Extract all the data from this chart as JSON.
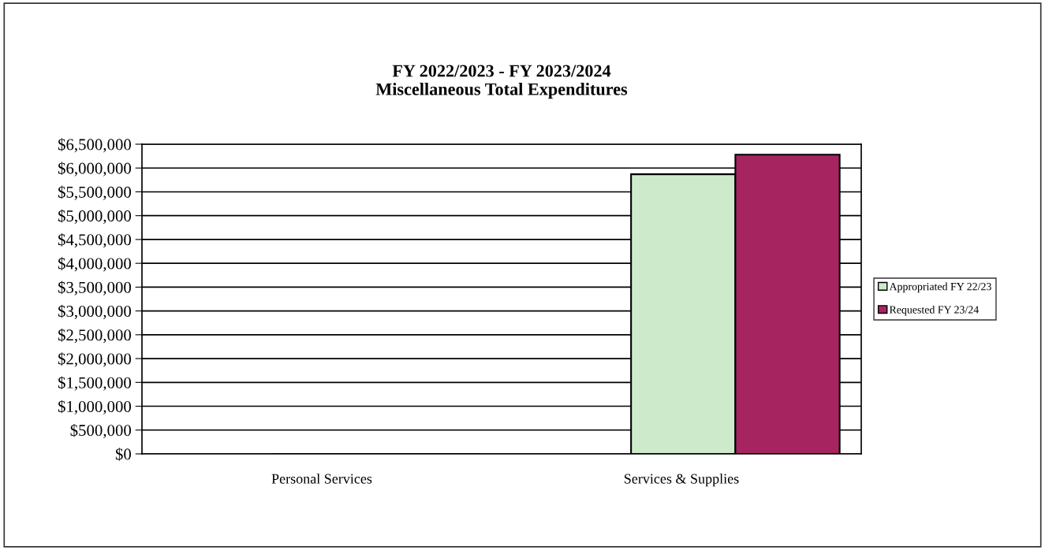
{
  "chart_data": {
    "type": "bar",
    "title": "FY 2022/2023 - FY 2023/2024\nMiscellaneous Total Expenditures",
    "categories": [
      "Personal Services",
      "Services & Supplies"
    ],
    "series": [
      {
        "name": "Appropriated FY 22/23",
        "color": "#cdebcb",
        "values": [
          0,
          5870000
        ]
      },
      {
        "name": "Requested FY 23/24",
        "color": "#a6245f",
        "values": [
          0,
          6280000
        ]
      }
    ],
    "ylim": [
      0,
      6500000
    ],
    "yticks": [
      {
        "value": 0,
        "label": "$0"
      },
      {
        "value": 500000,
        "label": "$500,000"
      },
      {
        "value": 1000000,
        "label": "$1,000,000"
      },
      {
        "value": 1500000,
        "label": "$1,500,000"
      },
      {
        "value": 2000000,
        "label": "$2,000,000"
      },
      {
        "value": 2500000,
        "label": "$2,500,000"
      },
      {
        "value": 3000000,
        "label": "$3,000,000"
      },
      {
        "value": 3500000,
        "label": "$3,500,000"
      },
      {
        "value": 4000000,
        "label": "$4,000,000"
      },
      {
        "value": 4500000,
        "label": "$4,500,000"
      },
      {
        "value": 5000000,
        "label": "$5,000,000"
      },
      {
        "value": 5500000,
        "label": "$5,500,000"
      },
      {
        "value": 6000000,
        "label": "$6,000,000"
      },
      {
        "value": 6500000,
        "label": "$6,500,000"
      }
    ],
    "grid": "y",
    "legend": "right"
  }
}
